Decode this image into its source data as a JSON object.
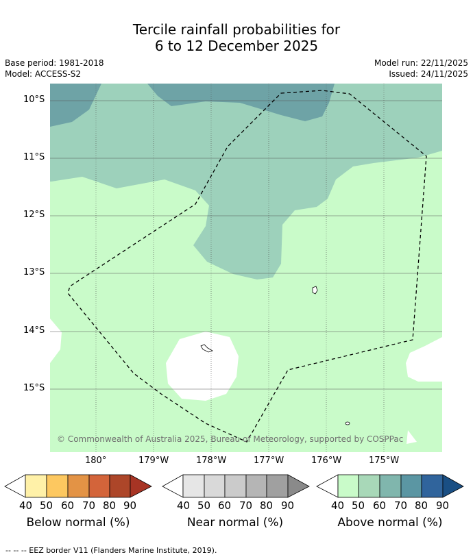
{
  "title_line1": "Tercile rainfall probabilities for",
  "title_line2": "6 to 12 December 2025",
  "base_period": "Base period: 1981-2018",
  "model": "Model: ACCESS-S2",
  "model_run": "Model run: 22/11/2025",
  "issued": "Issued: 24/11/2025",
  "copyright": "© Commonwealth of Australia 2025, Bureau of Meteorology, supported by COSPPac",
  "lat_labels": [
    "10°S",
    "11°S",
    "12°S",
    "13°S",
    "14°S",
    "15°S"
  ],
  "lon_labels": [
    "180°",
    "179°W",
    "178°W",
    "177°W",
    "176°W",
    "175°W"
  ],
  "colorbars": [
    {
      "title": "Below normal (%)",
      "ticks": [
        "40",
        "50",
        "60",
        "70",
        "80",
        "90"
      ],
      "colors": [
        "#fff1a8",
        "#fdc860",
        "#e39345",
        "#d3643a",
        "#ad4629",
        "#a73424"
      ]
    },
    {
      "title": "Near normal (%)",
      "ticks": [
        "40",
        "50",
        "60",
        "70",
        "80",
        "90"
      ],
      "colors": [
        "#e6e6e6",
        "#d9d9d9",
        "#cbcbcb",
        "#b5b5b5",
        "#a0a0a0",
        "#8a8a8a"
      ]
    },
    {
      "title": "Above normal (%)",
      "ticks": [
        "40",
        "50",
        "60",
        "70",
        "80",
        "90"
      ],
      "colors": [
        "#c9fbc9",
        "#a8d8b8",
        "#80b6ad",
        "#5b96a3",
        "#30649c",
        "#1a4f84"
      ]
    }
  ],
  "footer": "-- -- -- EEZ border V11 (Flanders Marine Institute, 2019).",
  "map_colors": {
    "above_40": "#c9fbc9",
    "above_50": "#9dd1bb",
    "above_60": "#6ea3a6",
    "no_signal": "#ffffff"
  }
}
